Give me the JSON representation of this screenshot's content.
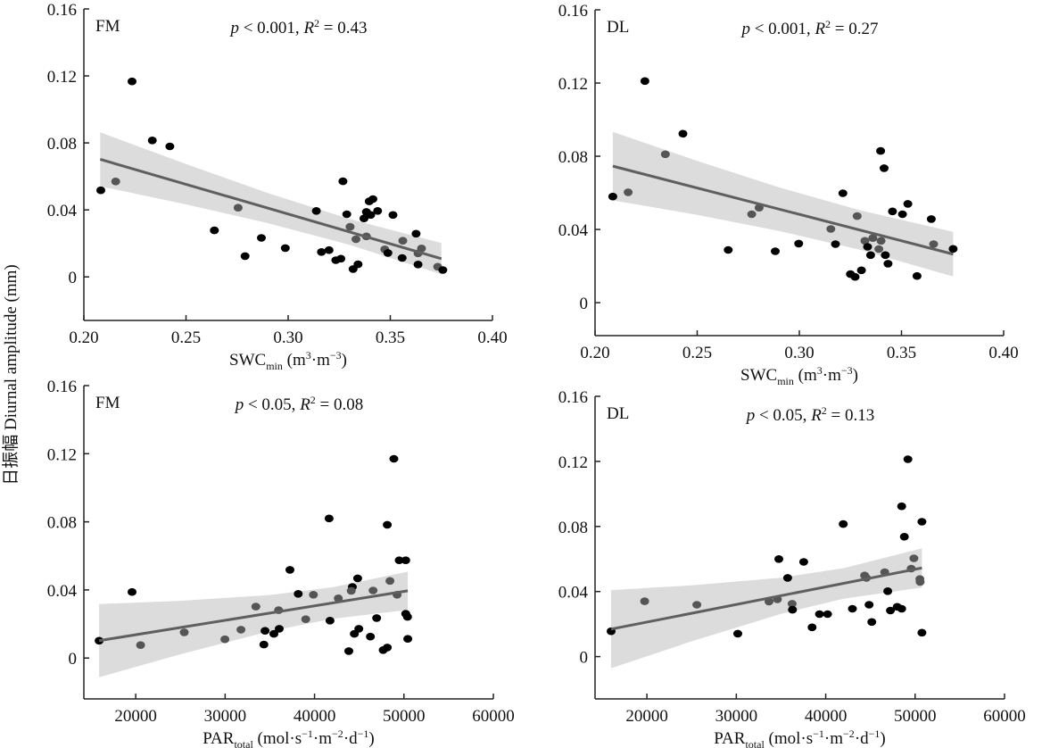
{
  "y_title": "日振幅 Diurnal amplitude (mm)",
  "colors": {
    "point_dark": "#000000",
    "point_gray": "#555555",
    "fit_line": "#5f5f5f",
    "ci_band": "#dcdcdc",
    "axis": "#222222"
  },
  "chart_data": [
    {
      "type": "scatter",
      "panel_label": "FM",
      "stat": {
        "p": "p",
        "p_text": " < 0.001, ",
        "r": "R",
        "r_sup": "2",
        "r_text": " = 0.43"
      },
      "xlabel": {
        "main": "SWC",
        "sub": "min",
        "unit_a": " (m",
        "sup1": "3",
        "unit_b": "·m",
        "sup2": "−3",
        "unit_c": ")"
      },
      "xlim": [
        0.2,
        0.4
      ],
      "ylim": [
        -0.026,
        0.16
      ],
      "xticks": [
        0.2,
        0.25,
        0.3,
        0.35,
        0.4
      ],
      "xtick_labels": [
        "0.20",
        "0.25",
        "0.30",
        "0.35",
        "0.40"
      ],
      "yticks": [
        0,
        0.04,
        0.08,
        0.12,
        0.16
      ],
      "ytick_labels": [
        "0",
        "0.04",
        "0.08",
        "0.12",
        "0.16"
      ],
      "points": [
        [
          0.2083,
          0.0517,
          0
        ],
        [
          0.2156,
          0.057,
          1
        ],
        [
          0.2236,
          0.1167,
          0
        ],
        [
          0.2335,
          0.0815,
          0
        ],
        [
          0.2421,
          0.0779,
          0
        ],
        [
          0.2755,
          0.0413,
          1
        ],
        [
          0.2639,
          0.0278,
          0
        ],
        [
          0.2789,
          0.0124,
          0
        ],
        [
          0.2869,
          0.0233,
          0
        ],
        [
          0.2986,
          0.0172,
          0
        ],
        [
          0.3138,
          0.0394,
          0
        ],
        [
          0.3163,
          0.0149,
          0
        ],
        [
          0.32,
          0.016,
          0
        ],
        [
          0.3233,
          0.01,
          0
        ],
        [
          0.3258,
          0.0109,
          0
        ],
        [
          0.3268,
          0.0571,
          0
        ],
        [
          0.3287,
          0.0374,
          0
        ],
        [
          0.3303,
          0.0299,
          1
        ],
        [
          0.3332,
          0.0225,
          1
        ],
        [
          0.3318,
          0.0047,
          0
        ],
        [
          0.3342,
          0.0075,
          0
        ],
        [
          0.3371,
          0.0349,
          0
        ],
        [
          0.3383,
          0.0388,
          0
        ],
        [
          0.3383,
          0.0242,
          1
        ],
        [
          0.3397,
          0.0451,
          0
        ],
        [
          0.3415,
          0.0465,
          0
        ],
        [
          0.3404,
          0.037,
          0
        ],
        [
          0.3438,
          0.0394,
          0
        ],
        [
          0.3473,
          0.0165,
          1
        ],
        [
          0.3488,
          0.0143,
          0
        ],
        [
          0.3513,
          0.037,
          0
        ],
        [
          0.3561,
          0.0216,
          1
        ],
        [
          0.3558,
          0.0113,
          0
        ],
        [
          0.3626,
          0.0258,
          0
        ],
        [
          0.3653,
          0.017,
          1
        ],
        [
          0.3636,
          0.0141,
          1
        ],
        [
          0.3636,
          0.0074,
          0
        ],
        [
          0.3732,
          0.0061,
          1
        ],
        [
          0.3757,
          0.0041,
          0
        ]
      ],
      "fit": {
        "x": [
          0.208,
          0.375
        ],
        "y": [
          0.0702,
          0.0109
        ]
      },
      "ci_band": {
        "x": [
          0.208,
          0.25,
          0.29,
          0.33,
          0.375
        ],
        "lower": [
          0.0541,
          0.0433,
          0.0321,
          0.0192,
          0.0016
        ],
        "upper": [
          0.0863,
          0.0674,
          0.0501,
          0.0346,
          0.0202
        ]
      }
    },
    {
      "type": "scatter",
      "panel_label": "DL",
      "stat": {
        "p": "p",
        "p_text": " < 0.001, ",
        "r": "R",
        "r_sup": "2",
        "r_text": " = 0.27"
      },
      "xlabel": {
        "main": "SWC",
        "sub": "min",
        "unit_a": " (m",
        "sup1": "3",
        "unit_b": "·m",
        "sup2": "−3",
        "unit_c": ")"
      },
      "xlim": [
        0.2,
        0.4
      ],
      "ylim": [
        -0.018,
        0.16
      ],
      "xticks": [
        0.2,
        0.25,
        0.3,
        0.35,
        0.4
      ],
      "xtick_labels": [
        "0.20",
        "0.25",
        "0.30",
        "0.35",
        "0.40"
      ],
      "yticks": [
        0,
        0.04,
        0.08,
        0.12,
        0.16
      ],
      "ytick_labels": [
        "0",
        "0.04",
        "0.08",
        "0.12",
        "0.16"
      ],
      "points": [
        [
          0.2087,
          0.058,
          0
        ],
        [
          0.2162,
          0.0603,
          1
        ],
        [
          0.2244,
          0.1211,
          0
        ],
        [
          0.2344,
          0.0811,
          1
        ],
        [
          0.243,
          0.0923,
          0
        ],
        [
          0.2652,
          0.0288,
          0
        ],
        [
          0.2767,
          0.0483,
          1
        ],
        [
          0.2803,
          0.0519,
          1
        ],
        [
          0.2882,
          0.0281,
          0
        ],
        [
          0.2997,
          0.0323,
          0
        ],
        [
          0.3154,
          0.0403,
          1
        ],
        [
          0.3177,
          0.032,
          0
        ],
        [
          0.3213,
          0.0598,
          0
        ],
        [
          0.325,
          0.0156,
          0
        ],
        [
          0.3273,
          0.0141,
          0
        ],
        [
          0.3283,
          0.0473,
          1
        ],
        [
          0.3304,
          0.0177,
          0
        ],
        [
          0.3321,
          0.0338,
          1
        ],
        [
          0.3334,
          0.0305,
          0
        ],
        [
          0.3349,
          0.026,
          0
        ],
        [
          0.336,
          0.0353,
          1
        ],
        [
          0.3389,
          0.0293,
          1
        ],
        [
          0.34,
          0.0338,
          1
        ],
        [
          0.3398,
          0.0829,
          0
        ],
        [
          0.3415,
          0.0735,
          0
        ],
        [
          0.3421,
          0.026,
          0
        ],
        [
          0.3434,
          0.0213,
          0
        ],
        [
          0.3456,
          0.0499,
          0
        ],
        [
          0.3505,
          0.0483,
          0
        ],
        [
          0.3531,
          0.054,
          0
        ],
        [
          0.3576,
          0.0146,
          0
        ],
        [
          0.3646,
          0.0457,
          0
        ],
        [
          0.3657,
          0.032,
          1
        ],
        [
          0.3753,
          0.0294,
          0
        ]
      ],
      "fit": {
        "x": [
          0.2087,
          0.3753
        ],
        "y": [
          0.0746,
          0.0265
        ]
      },
      "ci_band": {
        "x": [
          0.2087,
          0.25,
          0.29,
          0.33,
          0.3753
        ],
        "lower": [
          0.0559,
          0.048,
          0.0392,
          0.0288,
          0.0143
        ],
        "upper": [
          0.0933,
          0.0775,
          0.063,
          0.0504,
          0.0387
        ]
      }
    },
    {
      "type": "scatter",
      "panel_label": "FM",
      "stat": {
        "p": "p",
        "p_text": " < 0.05, ",
        "r": "R",
        "r_sup": "2",
        "r_text": " = 0.08"
      },
      "xlabel": {
        "main": "PAR",
        "sub": "total",
        "unit_a": " (mol·s",
        "sup1": "−1",
        "unit_b": "·m",
        "sup2": "−2",
        "unit_c": "·d",
        "sup3": "−1",
        "unit_d": ")"
      },
      "xlim": [
        14200,
        60000
      ],
      "ylim": [
        -0.024,
        0.16
      ],
      "xticks": [
        20000,
        30000,
        40000,
        50000,
        60000
      ],
      "xtick_labels": [
        "20000",
        "30000",
        "40000",
        "50000",
        "60000"
      ],
      "yticks": [
        0,
        0.04,
        0.08,
        0.12,
        0.16
      ],
      "ytick_labels": [
        "0",
        "0.04",
        "0.08",
        "0.12",
        "0.16"
      ],
      "points": [
        [
          15906,
          0.0102,
          0
        ],
        [
          19592,
          0.0388,
          0
        ],
        [
          20548,
          0.0076,
          1
        ],
        [
          25428,
          0.0151,
          1
        ],
        [
          29980,
          0.011,
          1
        ],
        [
          31773,
          0.0167,
          1
        ],
        [
          33436,
          0.0302,
          1
        ],
        [
          34333,
          0.0079,
          0
        ],
        [
          34462,
          0.016,
          0
        ],
        [
          35458,
          0.0142,
          0
        ],
        [
          35986,
          0.0281,
          1
        ],
        [
          36056,
          0.0172,
          0
        ],
        [
          37251,
          0.0518,
          0
        ],
        [
          38178,
          0.0377,
          0
        ],
        [
          39014,
          0.0228,
          1
        ],
        [
          39871,
          0.0372,
          1
        ],
        [
          41634,
          0.082,
          0
        ],
        [
          41734,
          0.022,
          0
        ],
        [
          42660,
          0.0351,
          1
        ],
        [
          43836,
          0.0041,
          0
        ],
        [
          44234,
          0.0418,
          0
        ],
        [
          44104,
          0.0395,
          1
        ],
        [
          44453,
          0.0142,
          0
        ],
        [
          44822,
          0.0468,
          0
        ],
        [
          44952,
          0.0172,
          0
        ],
        [
          46247,
          0.0126,
          0
        ],
        [
          46546,
          0.0397,
          1
        ],
        [
          46944,
          0.0235,
          0
        ],
        [
          47680,
          0.0047,
          0
        ],
        [
          48139,
          0.0062,
          0
        ],
        [
          48139,
          0.0783,
          0
        ],
        [
          48437,
          0.0453,
          1
        ],
        [
          48875,
          0.117,
          0
        ],
        [
          49234,
          0.0372,
          1
        ],
        [
          49473,
          0.0574,
          0
        ],
        [
          50200,
          0.0574,
          0
        ],
        [
          50200,
          0.026,
          0
        ],
        [
          50400,
          0.0242,
          0
        ],
        [
          50428,
          0.0113,
          0
        ]
      ],
      "fit": {
        "x": [
          15906,
          50428
        ],
        "y": [
          0.0102,
          0.0395
        ]
      },
      "ci_band": {
        "x": [
          15906,
          25000,
          35000,
          42000,
          50428
        ],
        "lower": [
          -0.0113,
          0.0022,
          0.0158,
          0.023,
          0.0283
        ],
        "upper": [
          0.0317,
          0.0336,
          0.037,
          0.0416,
          0.0507
        ]
      }
    },
    {
      "type": "scatter",
      "panel_label": "DL",
      "stat": {
        "p": "p",
        "p_text": " < 0.05, ",
        "r": "R",
        "r_sup": "2",
        "r_text": " = 0.13"
      },
      "xlabel": {
        "main": "PAR",
        "sub": "total",
        "unit_a": " (mol·s",
        "sup1": "−1",
        "unit_b": "·m",
        "sup2": "−2",
        "unit_c": "·d",
        "sup3": "−1",
        "unit_d": ")"
      },
      "xlim": [
        14200,
        60000
      ],
      "ylim": [
        -0.026,
        0.16
      ],
      "xticks": [
        20000,
        30000,
        40000,
        50000,
        60000
      ],
      "xtick_labels": [
        "20000",
        "30000",
        "40000",
        "50000",
        "60000"
      ],
      "yticks": [
        0,
        0.04,
        0.08,
        0.12,
        0.16
      ],
      "ytick_labels": [
        "0",
        "0.04",
        "0.08",
        "0.12",
        "0.16"
      ],
      "points": [
        [
          15996,
          0.0156,
          0
        ],
        [
          19751,
          0.034,
          1
        ],
        [
          25588,
          0.0319,
          1
        ],
        [
          30169,
          0.0141,
          0
        ],
        [
          33655,
          0.0338,
          1
        ],
        [
          34591,
          0.0352,
          1
        ],
        [
          34751,
          0.06,
          0
        ],
        [
          35747,
          0.0484,
          0
        ],
        [
          36245,
          0.0325,
          1
        ],
        [
          36284,
          0.0288,
          0
        ],
        [
          37540,
          0.0582,
          0
        ],
        [
          38476,
          0.018,
          0
        ],
        [
          39303,
          0.0261,
          0
        ],
        [
          40200,
          0.0261,
          0
        ],
        [
          41962,
          0.0815,
          0
        ],
        [
          42988,
          0.0294,
          0
        ],
        [
          44352,
          0.0499,
          1
        ],
        [
          44551,
          0.0484,
          1
        ],
        [
          44850,
          0.0319,
          0
        ],
        [
          45149,
          0.0213,
          0
        ],
        [
          46603,
          0.0519,
          1
        ],
        [
          46942,
          0.0402,
          0
        ],
        [
          47241,
          0.0283,
          0
        ],
        [
          47998,
          0.0306,
          0
        ],
        [
          48496,
          0.0294,
          0
        ],
        [
          48496,
          0.0924,
          0
        ],
        [
          48795,
          0.0737,
          0
        ],
        [
          49193,
          0.1213,
          0
        ],
        [
          49561,
          0.0541,
          1
        ],
        [
          49860,
          0.0604,
          1
        ],
        [
          50528,
          0.0477,
          1
        ],
        [
          50560,
          0.0459,
          1
        ],
        [
          50760,
          0.0829,
          0
        ],
        [
          50760,
          0.0147,
          0
        ]
      ],
      "fit": {
        "x": [
          15996,
          50760
        ],
        "y": [
          0.0169,
          0.0545
        ]
      },
      "ci_band": {
        "x": [
          15996,
          25000,
          35000,
          42000,
          50760
        ],
        "lower": [
          -0.0071,
          0.0094,
          0.0263,
          0.0356,
          0.0425
        ],
        "upper": [
          0.0409,
          0.0438,
          0.0485,
          0.0544,
          0.0665
        ]
      }
    }
  ]
}
